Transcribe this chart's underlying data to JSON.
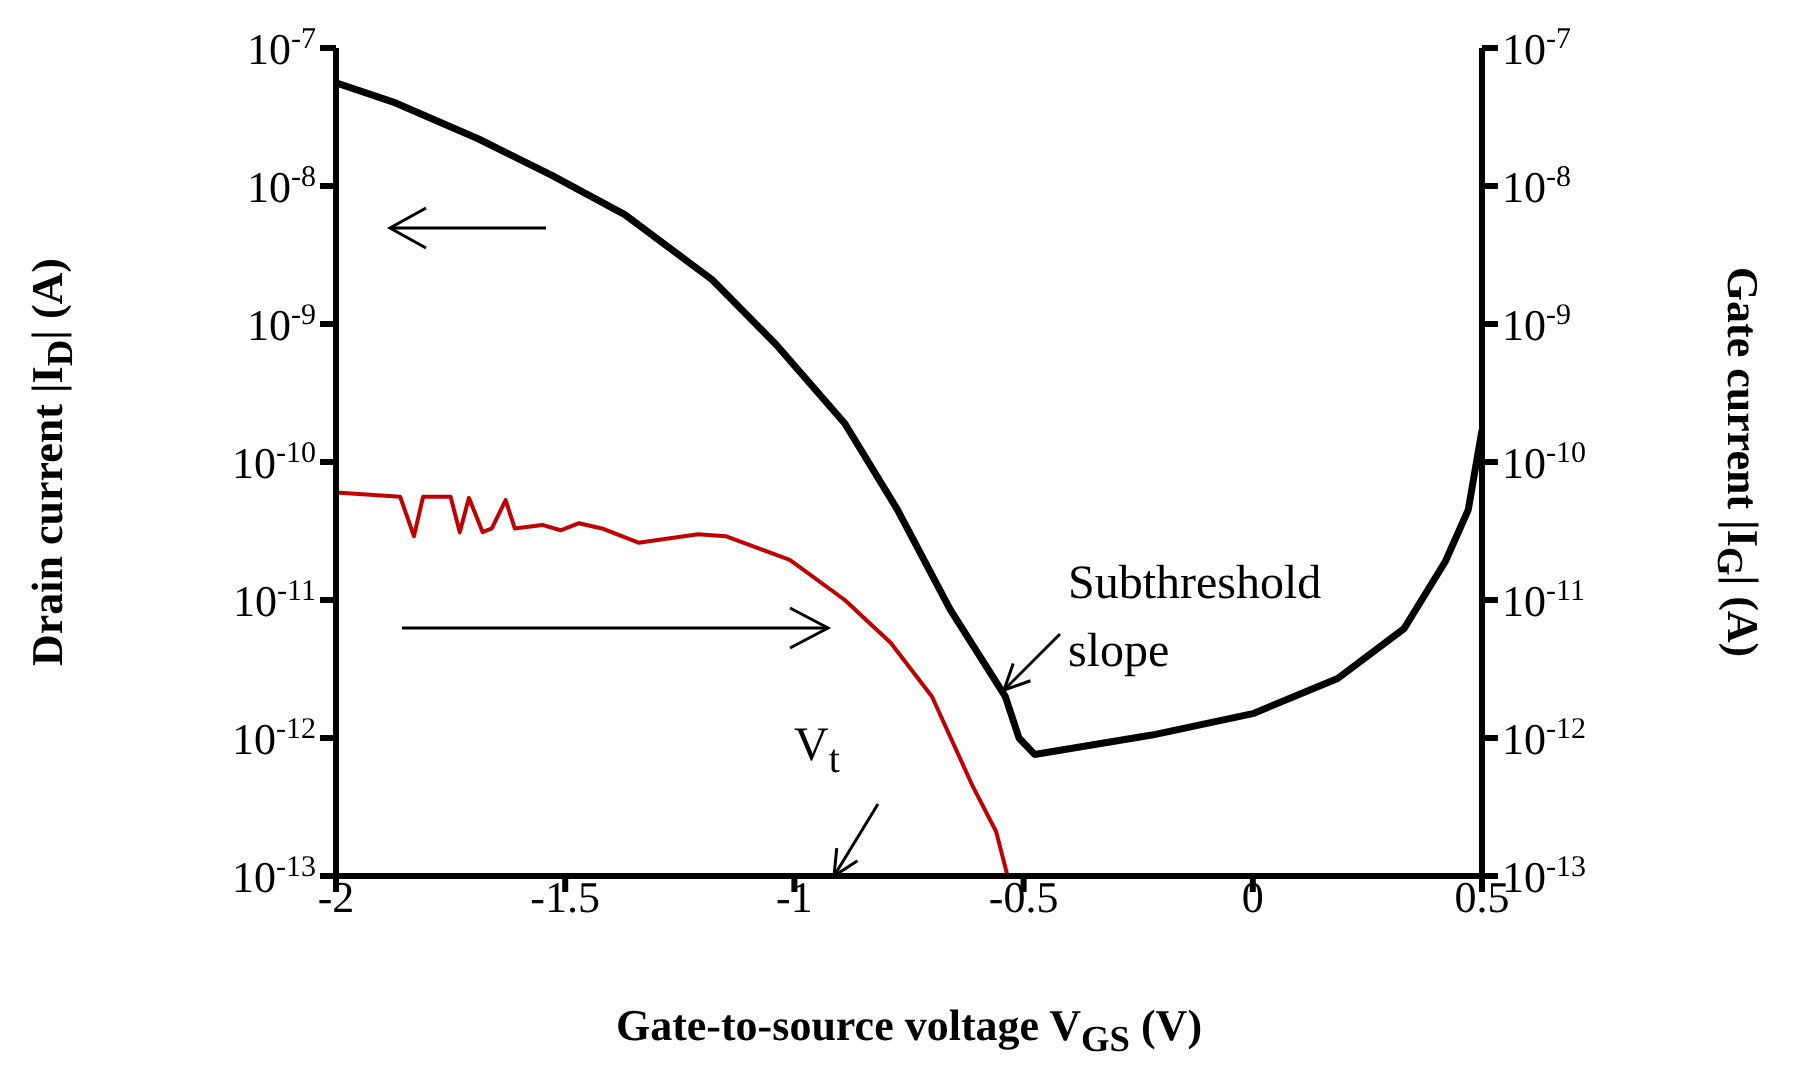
{
  "chart_data": {
    "type": "line",
    "log": "y",
    "xlabel": "Gate-to-source voltage V$_{GS}$ (V)",
    "ylabel": "Drain current |I$_{D}$| (A)",
    "y2label": "Gate current |I$_{G}$| (A)",
    "xlim": [
      -2,
      0.5
    ],
    "xticks": [
      -2,
      -1.5,
      -1,
      -0.5,
      0,
      0.5
    ],
    "ylim": [
      1e-13,
      1e-07
    ],
    "yticks": [
      {
        "value": 1e-13,
        "label": "10$^{-13}$"
      },
      {
        "value": 1e-12,
        "label": "10$^{-12}$"
      },
      {
        "value": 1e-11,
        "label": "10$^{-11}$"
      },
      {
        "value": 1e-10,
        "label": "10$^{-10}$"
      },
      {
        "value": 1e-09,
        "label": "10$^{-9}$"
      },
      {
        "value": 1e-08,
        "label": "10$^{-8}$"
      },
      {
        "value": 1e-07,
        "label": "10$^{-7}$"
      }
    ],
    "series": [
      {
        "color": "#000000",
        "x": [
          -2.0,
          -1.87,
          -1.69,
          -1.53,
          -1.37,
          -1.18,
          -1.04,
          -0.89,
          -0.775,
          -0.66,
          -0.54,
          -0.51,
          -0.476,
          -0.22,
          0.0,
          0.185,
          0.33,
          0.42,
          0.47,
          0.5
        ],
        "values": [
          5.6e-08,
          4e-08,
          2.2e-08,
          1.2e-08,
          6.2e-09,
          2.1e-09,
          7.1e-10,
          1.9e-10,
          4.5e-11,
          8.5e-12,
          2e-12,
          1e-12,
          7.6e-13,
          1.05e-12,
          1.5e-12,
          2.7e-12,
          6.2e-12,
          1.9e-11,
          4.5e-11,
          1.7e-10
        ]
      },
      {
        "color": "#c00000",
        "x": [
          -2.0,
          -1.86,
          -1.83,
          -1.81,
          -1.75,
          -1.73,
          -1.71,
          -1.68,
          -1.66,
          -1.63,
          -1.61,
          -1.55,
          -1.51,
          -1.47,
          -1.42,
          -1.34,
          -1.21,
          -1.15,
          -1.01,
          -0.89,
          -0.79,
          -0.7,
          -0.61,
          -0.56,
          -0.535
        ],
        "values": [
          6e-11,
          5.6e-11,
          2.9e-11,
          5.6e-11,
          5.6e-11,
          3.1e-11,
          5.5e-11,
          3.1e-11,
          3.3e-11,
          5.3e-11,
          3.3e-11,
          3.5e-11,
          3.2e-11,
          3.6e-11,
          3.3e-11,
          2.6e-11,
          3e-11,
          2.9e-11,
          1.95e-11,
          1e-11,
          4.9e-12,
          2e-12,
          4.4e-13,
          2.1e-13,
          1e-13
        ]
      }
    ],
    "annotations": [
      "Subthreshold slope",
      "V$_{t}$"
    ]
  }
}
